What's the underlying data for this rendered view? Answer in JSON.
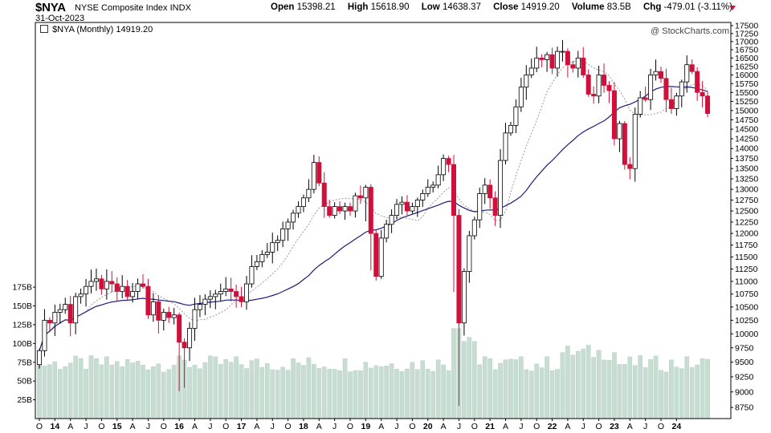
{
  "header": {
    "symbol": "$NYA",
    "name": "NYSE Composite Index",
    "exchange": "INDX",
    "date": "31-Oct-2023",
    "open_label": "Open",
    "open": "15398.21",
    "high_label": "High",
    "high": "15618.90",
    "low_label": "Low",
    "low": "14638.37",
    "close_label": "Close",
    "close": "14919.20",
    "volume_label": "Volume",
    "volume": "83.5B",
    "chg_label": "Chg",
    "chg": "-479.01 (-3.11%)",
    "credit": "@ StockCharts.com"
  },
  "legend": {
    "text": "$NYA (Monthly) 14919.20"
  },
  "colors": {
    "up": "#ffffff",
    "down": "#d0103a",
    "ma_fast": "#999999",
    "ma_slow": "#1c1c7a",
    "volume": "#c8ddd2"
  },
  "chart_data": {
    "type": "candlestick",
    "interval": "monthly",
    "price_axis": {
      "ylim": [
        8600,
        17600
      ],
      "ticks": [
        8750,
        9000,
        9250,
        9500,
        9750,
        10000,
        10250,
        10500,
        10750,
        11000,
        11250,
        11500,
        11750,
        12000,
        12250,
        12500,
        12750,
        13000,
        13250,
        13500,
        13750,
        14000,
        14250,
        14500,
        14750,
        15000,
        15250,
        15500,
        15750,
        16000,
        16250,
        16500,
        16750,
        17000,
        17250,
        17500
      ]
    },
    "volume_axis": {
      "ylim": [
        0,
        205
      ],
      "ticks": [
        25,
        50,
        75,
        100,
        125,
        150,
        175
      ],
      "tick_labels": [
        "25B",
        "50B",
        "75B",
        "100B",
        "125B",
        "150B",
        "175B"
      ]
    },
    "x_labels": [
      "O",
      "14",
      "A",
      "J",
      "O",
      "15",
      "A",
      "J",
      "O",
      "16",
      "A",
      "J",
      "O",
      "17",
      "A",
      "J",
      "O",
      "18",
      "A",
      "J",
      "O",
      "19",
      "A",
      "J",
      "O",
      "20",
      "A",
      "J",
      "O",
      "21",
      "A",
      "J",
      "O",
      "22",
      "A",
      "J",
      "O",
      "23",
      "A",
      "J",
      "O",
      "24"
    ],
    "x_label_index": [
      0,
      3,
      6,
      9,
      12,
      15,
      18,
      21,
      24,
      27,
      30,
      33,
      36,
      39,
      42,
      45,
      48,
      51,
      54,
      57,
      60,
      63,
      66,
      69,
      72,
      75,
      78,
      81,
      84,
      87,
      90,
      93,
      96,
      99,
      102,
      105,
      108,
      111,
      114,
      117,
      120,
      123
    ],
    "closes": [
      9700,
      10250,
      10200,
      10400,
      10450,
      10550,
      10200,
      10700,
      10750,
      10900,
      11000,
      11050,
      10850,
      11000,
      10950,
      10800,
      10900,
      10700,
      10800,
      10950,
      10900,
      10350,
      10600,
      10250,
      10400,
      10300,
      10350,
      9850,
      9750,
      10100,
      10450,
      10550,
      10650,
      10700,
      10750,
      10800,
      10850,
      10800,
      10700,
      10600,
      10950,
      11300,
      11400,
      11550,
      11600,
      11800,
      11850,
      12100,
      12250,
      12450,
      12600,
      12800,
      13000,
      13650,
      13150,
      12600,
      12400,
      12600,
      12500,
      12600,
      12500,
      12850,
      12800,
      13050,
      12000,
      11100,
      11900,
      12200,
      12400,
      12650,
      12700,
      12500,
      12600,
      12750,
      12900,
      13050,
      13100,
      13350,
      13750,
      13600,
      12400,
      10200,
      11200,
      11950,
      12300,
      12900,
      13100,
      12800,
      12400,
      13700,
      14400,
      14600,
      15100,
      15650,
      16000,
      16200,
      16500,
      16450,
      16600,
      16200,
      16700,
      16700,
      16300,
      16200,
      16500,
      16000,
      15450,
      15400,
      16000,
      15700,
      15550,
      14250,
      14650,
      13600,
      13500,
      14900,
      15350,
      15300,
      16000,
      16100,
      15900,
      15300,
      15050,
      15400,
      15800,
      16300,
      16100,
      15500,
      15400,
      14919.2
    ],
    "ma_fast_label": "",
    "ma_slow_label": ""
  }
}
